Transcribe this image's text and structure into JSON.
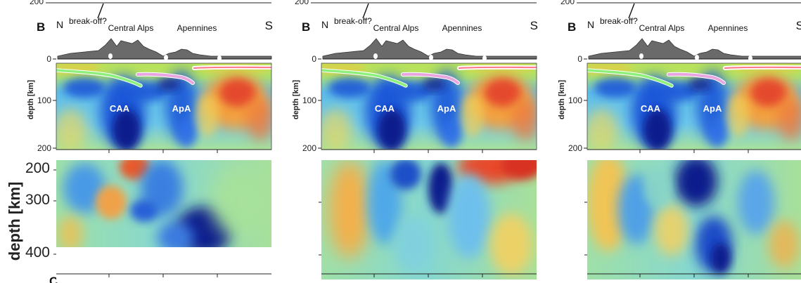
{
  "figure": {
    "y_axis_label": "depth [km]",
    "bottom_tick_labels": [
      "200",
      "300",
      "400"
    ],
    "bottom_panel_letter": "C",
    "panels": [
      {
        "id": "p1",
        "top": {
          "letter": "B",
          "north": "N",
          "south": "S",
          "breakoff": "break-off?",
          "central_alps": "Central Alps",
          "apennines": "Apennines",
          "y_axis_label": "depth [km]",
          "ticks": [
            "0",
            "100",
            "200"
          ],
          "top_tick": "200",
          "anomaly_1": "CAA",
          "anomaly_2": "ApA"
        },
        "bottom": {
          "variant": "a",
          "tick_labels_visible": true,
          "blank_bottom": true
        }
      },
      {
        "id": "p2",
        "top": {
          "letter": "B",
          "north": "N",
          "south": "S",
          "breakoff": "break-off?",
          "central_alps": "Central Alps",
          "apennines": "Apennines",
          "y_axis_label": "depth [km]",
          "ticks": [
            "0",
            "100",
            "200"
          ],
          "top_tick": "200",
          "anomaly_1": "CAA",
          "anomaly_2": "ApA"
        },
        "bottom": {
          "variant": "b",
          "tick_labels_visible": false,
          "blank_bottom": false
        }
      },
      {
        "id": "p3",
        "top": {
          "letter": "B",
          "north": "N",
          "south": "S",
          "breakoff": "break-off?",
          "central_alps": "Central Alps",
          "apennines": "Apennines",
          "y_axis_label": "depth [km]",
          "ticks": [
            "0",
            "100",
            "200"
          ],
          "top_tick": "200",
          "anomaly_1": "CAA",
          "anomaly_2": "ApA"
        },
        "bottom": {
          "variant": "c",
          "tick_labels_visible": false,
          "blank_bottom": false
        }
      }
    ],
    "colors": {
      "fast_dark": "#0a1a8c",
      "fast": "#1e58d8",
      "neutral": "#7fd6ec",
      "slow": "#f2a040",
      "slow_strong": "#e23a2a",
      "crust_green": "#b8e25a",
      "topography": "#6a6a6a",
      "slab_green": "#8cf07a",
      "slab_pink": "#e8a6e0"
    }
  }
}
